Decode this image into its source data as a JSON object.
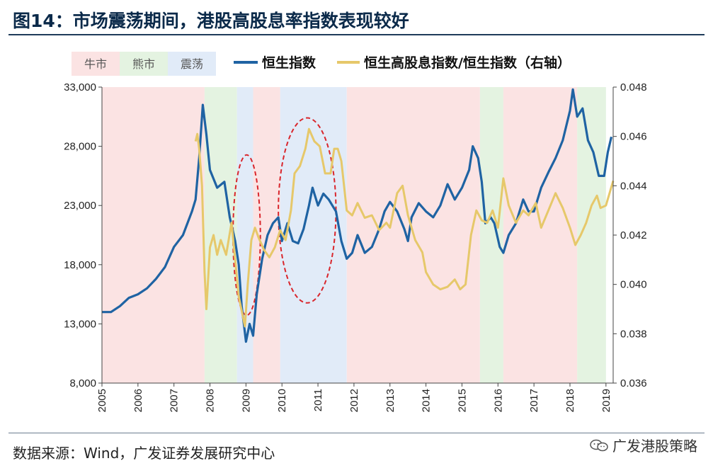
{
  "header": {
    "title": "图14：市场震荡期间，港股高股息率指数表现较好"
  },
  "footer": {
    "source": "数据来源：Wind，广发证券发展研究中心",
    "watermark": "广发港股策略"
  },
  "colors": {
    "hsi": "#1f63a3",
    "ratio": "#e6c86a",
    "bull": "#fbe3e3",
    "bear": "#e4f3e1",
    "volatile": "#e1ebf8",
    "ellipse": "#d9262c"
  },
  "chart_data": {
    "type": "line",
    "title": "市场震荡期间，港股高股息率指数表现较好",
    "x_range": [
      2005,
      2019.2
    ],
    "x_ticks": [
      "2005",
      "2006",
      "2007",
      "2008",
      "2009",
      "2010",
      "2011",
      "2012",
      "2013",
      "2014",
      "2015",
      "2016",
      "2017",
      "2018",
      "2019"
    ],
    "y_left": {
      "range": [
        8000,
        33000
      ],
      "ticks": [
        "8,000",
        "13,000",
        "18,000",
        "23,000",
        "28,000",
        "33,000"
      ],
      "tick_values": [
        8000,
        13000,
        18000,
        23000,
        28000,
        33000
      ]
    },
    "y_right": {
      "range": [
        0.036,
        0.048
      ],
      "ticks": [
        "0.036",
        "0.038",
        "0.040",
        "0.042",
        "0.044",
        "0.046",
        "0.048"
      ],
      "tick_values": [
        0.036,
        0.038,
        0.04,
        0.042,
        0.044,
        0.046,
        0.048
      ]
    },
    "regime_legend": [
      {
        "label": "牛市",
        "kind": "bull"
      },
      {
        "label": "熊市",
        "kind": "bear"
      },
      {
        "label": "震荡",
        "kind": "volatile"
      }
    ],
    "regimes": [
      {
        "kind": "bull",
        "start": 2005.0,
        "end": 2007.85
      },
      {
        "kind": "bear",
        "start": 2007.85,
        "end": 2008.75
      },
      {
        "kind": "volatile",
        "start": 2008.75,
        "end": 2009.2
      },
      {
        "kind": "bull",
        "start": 2009.2,
        "end": 2009.95
      },
      {
        "kind": "volatile",
        "start": 2009.95,
        "end": 2011.8
      },
      {
        "kind": "bull",
        "start": 2011.8,
        "end": 2015.5
      },
      {
        "kind": "bear",
        "start": 2015.5,
        "end": 2016.15
      },
      {
        "kind": "bull",
        "start": 2016.15,
        "end": 2018.2
      },
      {
        "kind": "bear",
        "start": 2018.2,
        "end": 2019.0
      }
    ],
    "series": [
      {
        "name": "恒生指数",
        "axis": "left",
        "points": [
          [
            2005.0,
            14000
          ],
          [
            2005.25,
            14000
          ],
          [
            2005.5,
            14500
          ],
          [
            2005.75,
            15200
          ],
          [
            2006.0,
            15500
          ],
          [
            2006.25,
            16000
          ],
          [
            2006.5,
            16800
          ],
          [
            2006.75,
            17800
          ],
          [
            2007.0,
            19500
          ],
          [
            2007.25,
            20500
          ],
          [
            2007.5,
            22500
          ],
          [
            2007.6,
            23500
          ],
          [
            2007.7,
            27000
          ],
          [
            2007.8,
            31500
          ],
          [
            2007.9,
            29000
          ],
          [
            2008.0,
            26000
          ],
          [
            2008.2,
            24500
          ],
          [
            2008.4,
            25000
          ],
          [
            2008.55,
            22000
          ],
          [
            2008.7,
            20000
          ],
          [
            2008.8,
            18000
          ],
          [
            2008.88,
            14500
          ],
          [
            2008.95,
            12800
          ],
          [
            2009.0,
            11500
          ],
          [
            2009.1,
            13000
          ],
          [
            2009.2,
            12000
          ],
          [
            2009.3,
            15500
          ],
          [
            2009.45,
            18500
          ],
          [
            2009.6,
            20500
          ],
          [
            2009.75,
            21500
          ],
          [
            2009.9,
            22000
          ],
          [
            2010.0,
            20000
          ],
          [
            2010.15,
            21500
          ],
          [
            2010.3,
            20000
          ],
          [
            2010.45,
            19800
          ],
          [
            2010.6,
            21000
          ],
          [
            2010.75,
            23000
          ],
          [
            2010.85,
            24500
          ],
          [
            2011.0,
            23000
          ],
          [
            2011.15,
            24000
          ],
          [
            2011.3,
            23500
          ],
          [
            2011.5,
            22500
          ],
          [
            2011.65,
            20000
          ],
          [
            2011.8,
            18500
          ],
          [
            2011.95,
            19000
          ],
          [
            2012.1,
            20500
          ],
          [
            2012.3,
            19000
          ],
          [
            2012.5,
            19500
          ],
          [
            2012.7,
            21000
          ],
          [
            2012.85,
            22500
          ],
          [
            2013.0,
            23300
          ],
          [
            2013.2,
            22500
          ],
          [
            2013.4,
            21000
          ],
          [
            2013.5,
            20000
          ],
          [
            2013.6,
            22000
          ],
          [
            2013.8,
            23200
          ],
          [
            2014.0,
            22500
          ],
          [
            2014.2,
            22000
          ],
          [
            2014.4,
            23000
          ],
          [
            2014.6,
            24800
          ],
          [
            2014.8,
            23500
          ],
          [
            2015.0,
            24500
          ],
          [
            2015.2,
            26000
          ],
          [
            2015.3,
            28000
          ],
          [
            2015.45,
            27000
          ],
          [
            2015.55,
            25000
          ],
          [
            2015.65,
            21500
          ],
          [
            2015.8,
            22000
          ],
          [
            2015.9,
            21500
          ],
          [
            2016.05,
            19500
          ],
          [
            2016.15,
            19000
          ],
          [
            2016.3,
            20500
          ],
          [
            2016.5,
            21500
          ],
          [
            2016.7,
            23500
          ],
          [
            2016.85,
            22500
          ],
          [
            2017.0,
            22500
          ],
          [
            2017.2,
            24500
          ],
          [
            2017.4,
            25800
          ],
          [
            2017.6,
            27000
          ],
          [
            2017.8,
            28500
          ],
          [
            2018.0,
            31000
          ],
          [
            2018.08,
            32800
          ],
          [
            2018.2,
            30500
          ],
          [
            2018.35,
            31200
          ],
          [
            2018.5,
            28500
          ],
          [
            2018.65,
            27500
          ],
          [
            2018.8,
            25500
          ],
          [
            2018.95,
            25500
          ],
          [
            2019.05,
            27500
          ],
          [
            2019.15,
            28800
          ]
        ]
      },
      {
        "name": "恒生高股息指数/恒生指数（右轴）",
        "axis": "right",
        "points": [
          [
            2007.6,
            0.0458
          ],
          [
            2007.65,
            0.0461
          ],
          [
            2007.7,
            0.0455
          ],
          [
            2007.78,
            0.044
          ],
          [
            2007.85,
            0.0405
          ],
          [
            2007.9,
            0.039
          ],
          [
            2008.0,
            0.0415
          ],
          [
            2008.1,
            0.042
          ],
          [
            2008.2,
            0.0412
          ],
          [
            2008.3,
            0.0418
          ],
          [
            2008.45,
            0.0412
          ],
          [
            2008.6,
            0.0425
          ],
          [
            2008.7,
            0.041
          ],
          [
            2008.8,
            0.0395
          ],
          [
            2008.9,
            0.0388
          ],
          [
            2008.97,
            0.0383
          ],
          [
            2009.05,
            0.04
          ],
          [
            2009.15,
            0.0418
          ],
          [
            2009.25,
            0.0423
          ],
          [
            2009.35,
            0.0419
          ],
          [
            2009.5,
            0.0414
          ],
          [
            2009.65,
            0.0411
          ],
          [
            2009.8,
            0.0415
          ],
          [
            2009.95,
            0.0422
          ],
          [
            2010.1,
            0.0418
          ],
          [
            2010.25,
            0.043
          ],
          [
            2010.35,
            0.0445
          ],
          [
            2010.5,
            0.0448
          ],
          [
            2010.65,
            0.0455
          ],
          [
            2010.75,
            0.0463
          ],
          [
            2010.9,
            0.0458
          ],
          [
            2011.05,
            0.0456
          ],
          [
            2011.2,
            0.0445
          ],
          [
            2011.35,
            0.0445
          ],
          [
            2011.45,
            0.0455
          ],
          [
            2011.55,
            0.0455
          ],
          [
            2011.65,
            0.045
          ],
          [
            2011.8,
            0.043
          ],
          [
            2011.95,
            0.0428
          ],
          [
            2012.1,
            0.0433
          ],
          [
            2012.3,
            0.0427
          ],
          [
            2012.5,
            0.0428
          ],
          [
            2012.7,
            0.0422
          ],
          [
            2012.9,
            0.0425
          ],
          [
            2013.0,
            0.0423
          ],
          [
            2013.2,
            0.0437
          ],
          [
            2013.35,
            0.044
          ],
          [
            2013.5,
            0.0428
          ],
          [
            2013.7,
            0.0418
          ],
          [
            2013.9,
            0.0413
          ],
          [
            2014.0,
            0.0405
          ],
          [
            2014.2,
            0.04
          ],
          [
            2014.4,
            0.0398
          ],
          [
            2014.6,
            0.0399
          ],
          [
            2014.8,
            0.0402
          ],
          [
            2014.95,
            0.0398
          ],
          [
            2015.1,
            0.04
          ],
          [
            2015.25,
            0.042
          ],
          [
            2015.4,
            0.043
          ],
          [
            2015.55,
            0.0426
          ],
          [
            2015.7,
            0.0425
          ],
          [
            2015.85,
            0.043
          ],
          [
            2016.0,
            0.0423
          ],
          [
            2016.15,
            0.0443
          ],
          [
            2016.3,
            0.0432
          ],
          [
            2016.5,
            0.0425
          ],
          [
            2016.7,
            0.043
          ],
          [
            2016.85,
            0.0428
          ],
          [
            2017.05,
            0.0433
          ],
          [
            2017.2,
            0.0423
          ],
          [
            2017.4,
            0.043
          ],
          [
            2017.6,
            0.0437
          ],
          [
            2017.8,
            0.0431
          ],
          [
            2018.0,
            0.0423
          ],
          [
            2018.15,
            0.0416
          ],
          [
            2018.3,
            0.042
          ],
          [
            2018.45,
            0.0425
          ],
          [
            2018.6,
            0.0432
          ],
          [
            2018.75,
            0.0436
          ],
          [
            2018.85,
            0.0431
          ],
          [
            2019.0,
            0.0432
          ],
          [
            2019.1,
            0.0437
          ],
          [
            2019.2,
            0.0442
          ]
        ]
      }
    ],
    "annotations": [
      {
        "type": "ellipse",
        "center": [
          2009.02,
          0.042
        ],
        "radius_x_years": 0.38,
        "radius_y_value": 0.00325
      },
      {
        "type": "ellipse",
        "center": [
          2010.7,
          0.043
        ],
        "radius_x_years": 0.8,
        "radius_y_value": 0.00375
      }
    ]
  }
}
